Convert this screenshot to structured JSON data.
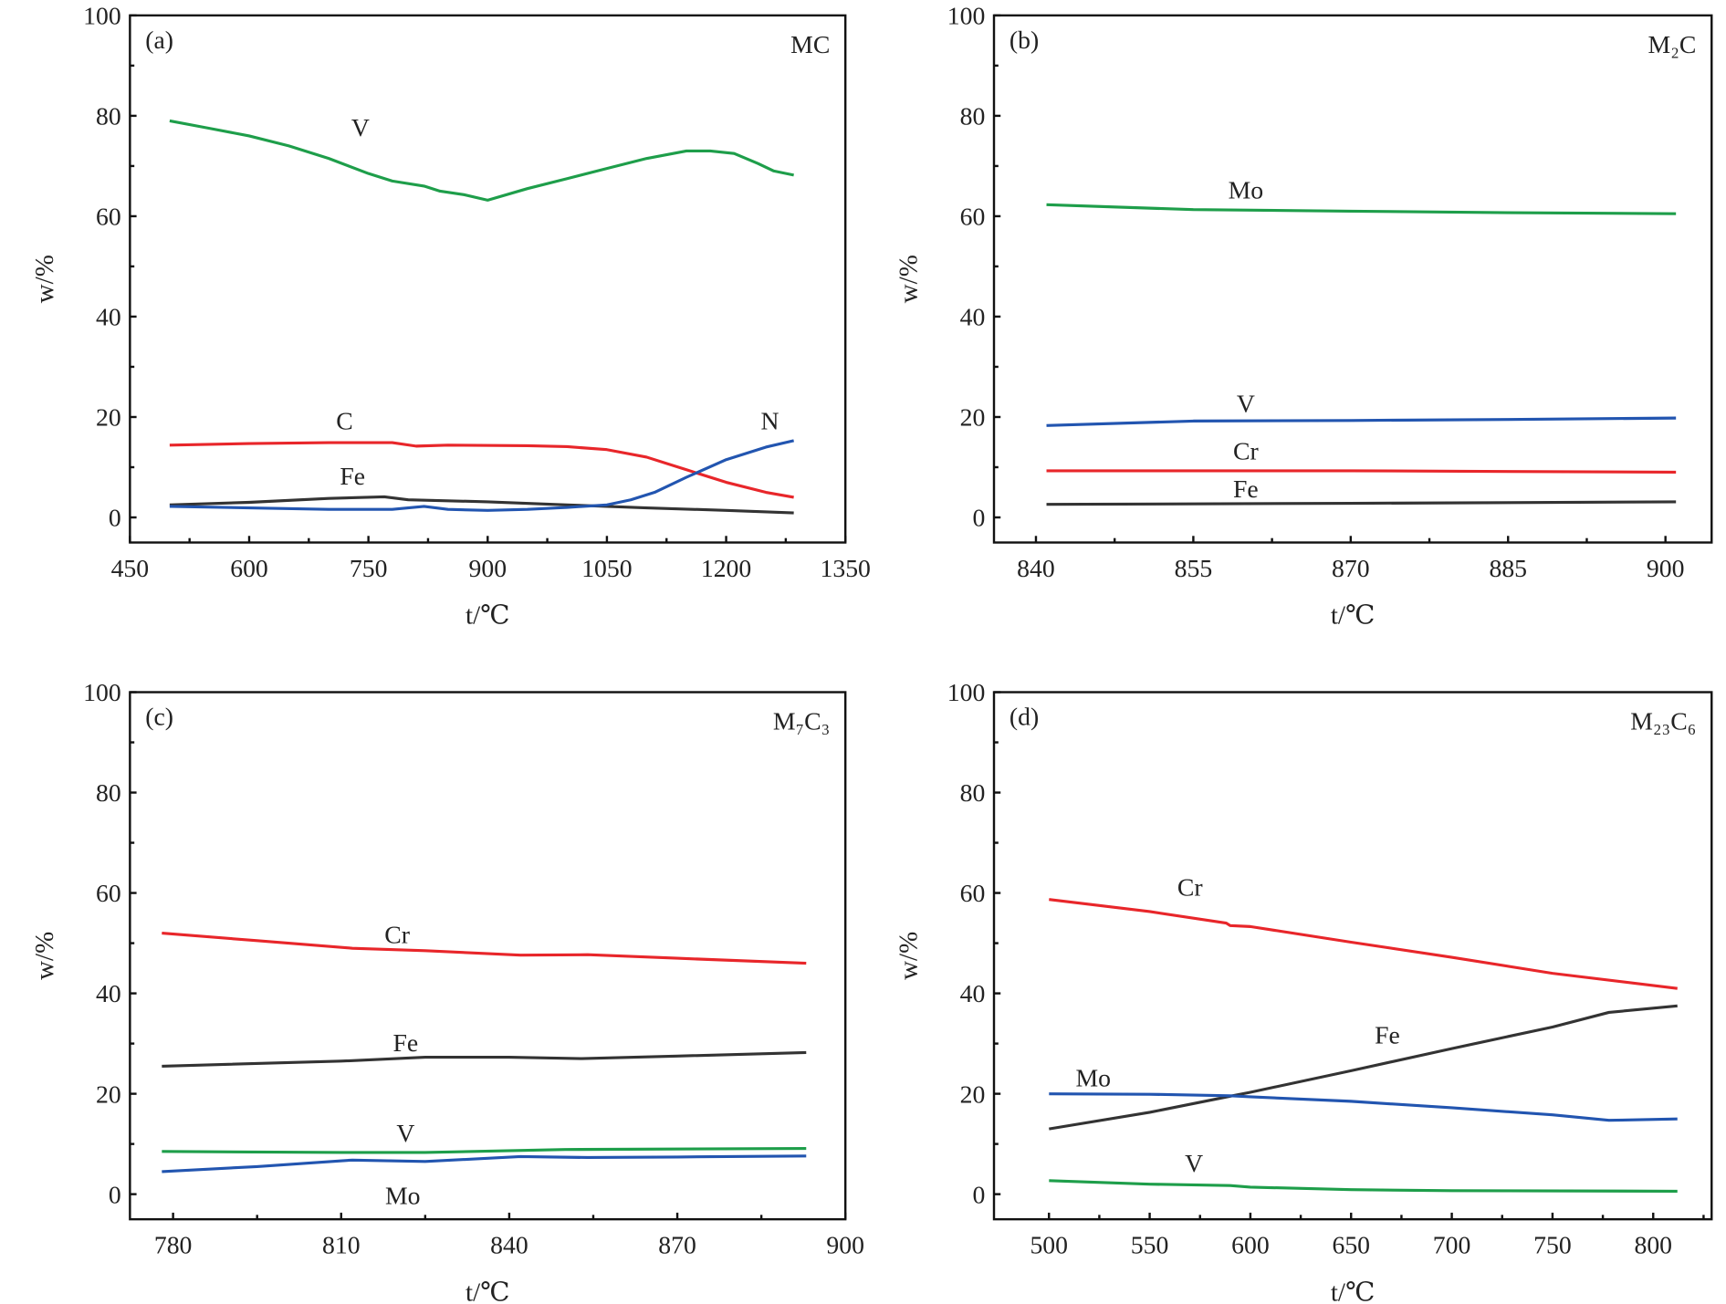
{
  "chart_data": [
    {
      "type": "line",
      "panel_label": "(a)",
      "phase_label": "MC",
      "xlabel": "t/℃",
      "ylabel": "w/%",
      "xlim": [
        450,
        1350
      ],
      "ylim": [
        -5,
        100
      ],
      "xticks": [
        450,
        600,
        750,
        900,
        1050,
        1200,
        1350
      ],
      "yticks": [
        0,
        20,
        40,
        60,
        80,
        100
      ],
      "grid": false,
      "series": [
        {
          "name": "V",
          "color": "#1e9e4a",
          "label_at": [
            740,
            76
          ],
          "x": [
            500,
            550,
            600,
            650,
            700,
            750,
            780,
            820,
            840,
            870,
            900,
            950,
            1000,
            1050,
            1100,
            1150,
            1180,
            1210,
            1240,
            1260,
            1285
          ],
          "y": [
            79,
            77.5,
            76,
            74,
            71.5,
            68.5,
            67,
            66,
            65,
            64.3,
            63.2,
            65.5,
            67.5,
            69.5,
            71.5,
            73,
            73,
            72.5,
            70.5,
            69,
            68.2
          ]
        },
        {
          "name": "C",
          "color": "#e8262a",
          "label_at": [
            720,
            17.5
          ],
          "x": [
            500,
            600,
            700,
            780,
            810,
            850,
            950,
            1000,
            1050,
            1100,
            1150,
            1200,
            1250,
            1285
          ],
          "y": [
            14.4,
            14.7,
            14.9,
            14.9,
            14.2,
            14.4,
            14.3,
            14.1,
            13.5,
            12,
            9.5,
            7,
            5,
            4
          ]
        },
        {
          "name": "Fe",
          "color": "#333333",
          "label_at": [
            730,
            6.5
          ],
          "x": [
            500,
            600,
            700,
            770,
            800,
            900,
            1000,
            1100,
            1200,
            1285
          ],
          "y": [
            2.5,
            3,
            3.8,
            4.1,
            3.5,
            3.1,
            2.5,
            1.9,
            1.4,
            0.9
          ]
        },
        {
          "name": "N",
          "color": "#2255b0",
          "label_at": [
            1255,
            17.5
          ],
          "x": [
            500,
            600,
            700,
            780,
            820,
            850,
            900,
            950,
            1000,
            1050,
            1080,
            1110,
            1150,
            1200,
            1250,
            1285
          ],
          "y": [
            2.2,
            1.9,
            1.6,
            1.6,
            2.2,
            1.6,
            1.4,
            1.6,
            2,
            2.5,
            3.5,
            5,
            8,
            11.5,
            14,
            15.3
          ]
        }
      ]
    },
    {
      "type": "line",
      "panel_label": "(b)",
      "phase_label": "M₂C",
      "xlabel": "t/℃",
      "ylabel": "w/%",
      "xlim": [
        836,
        904.4
      ],
      "ylim": [
        -5,
        100
      ],
      "xticks": [
        840,
        855,
        870,
        885,
        900
      ],
      "yticks": [
        0,
        20,
        40,
        60,
        80,
        100
      ],
      "grid": false,
      "series": [
        {
          "name": "Mo",
          "color": "#1e9e4a",
          "label_at": [
            860,
            63.5
          ],
          "x": [
            841,
            855,
            870,
            885,
            901
          ],
          "y": [
            62.3,
            61.3,
            61,
            60.7,
            60.5
          ]
        },
        {
          "name": "V",
          "color": "#2255b0",
          "label_at": [
            860,
            21
          ],
          "x": [
            841,
            855,
            870,
            885,
            901
          ],
          "y": [
            18.3,
            19.2,
            19.3,
            19.5,
            19.8
          ]
        },
        {
          "name": "Cr",
          "color": "#e8262a",
          "label_at": [
            860,
            11.5
          ],
          "x": [
            841,
            870,
            901
          ],
          "y": [
            9.3,
            9.3,
            9.0
          ]
        },
        {
          "name": "Fe",
          "color": "#333333",
          "label_at": [
            860,
            4
          ]
        },
        {
          "name": "",
          "color": "#333333",
          "x": [
            841,
            870,
            901
          ],
          "y": [
            2.6,
            2.8,
            3.1
          ]
        }
      ]
    },
    {
      "type": "line",
      "panel_label": "(c)",
      "phase_label": "M₇C₃",
      "xlabel": "t/℃",
      "ylabel": "w/%",
      "xlim": [
        772.3,
        900
      ],
      "ylim": [
        -5,
        100
      ],
      "xticks": [
        780,
        810,
        840,
        870,
        900
      ],
      "yticks": [
        0,
        20,
        40,
        60,
        80,
        100
      ],
      "grid": false,
      "series": [
        {
          "name": "Cr",
          "color": "#e8262a",
          "label_at": [
            820,
            50
          ],
          "x": [
            778,
            795,
            812,
            825,
            842,
            854,
            870,
            893
          ],
          "y": [
            52,
            50.5,
            49,
            48.5,
            47.6,
            47.7,
            47,
            46
          ]
        },
        {
          "name": "Fe",
          "color": "#333333",
          "label_at": [
            821.5,
            28.5
          ],
          "x": [
            778,
            810,
            825,
            840,
            853,
            870,
            893
          ],
          "y": [
            25.5,
            26.5,
            27.3,
            27.3,
            27,
            27.5,
            28.2
          ]
        },
        {
          "name": "V",
          "color": "#1e9e4a",
          "label_at": [
            821.5,
            10.5
          ],
          "x": [
            778,
            810,
            825,
            850,
            893
          ],
          "y": [
            8.5,
            8.3,
            8.3,
            8.9,
            9.1
          ]
        },
        {
          "name": "Mo",
          "color": "#2255b0",
          "label_at": [
            821,
            -2
          ],
          "x": [
            778,
            795,
            812,
            825,
            842,
            854,
            870,
            893
          ],
          "y": [
            4.5,
            5.5,
            6.8,
            6.5,
            7.5,
            7.3,
            7.4,
            7.6
          ]
        }
      ]
    },
    {
      "type": "line",
      "panel_label": "(d)",
      "phase_label": "M₂₃C₆",
      "xlabel": "t/℃",
      "ylabel": "w/%",
      "xlim": [
        472.7,
        829
      ],
      "ylim": [
        -5,
        100
      ],
      "xticks": [
        500,
        550,
        600,
        650,
        700,
        750,
        800
      ],
      "yticks": [
        0,
        20,
        40,
        60,
        80,
        100
      ],
      "grid": false,
      "series": [
        {
          "name": "Cr",
          "color": "#e8262a",
          "label_at": [
            570,
            59.5
          ],
          "x": [
            500,
            550,
            588,
            590,
            600,
            650,
            700,
            750,
            812
          ],
          "y": [
            58.7,
            56.3,
            54,
            53.5,
            53.3,
            50.2,
            47.2,
            44,
            41
          ]
        },
        {
          "name": "Fe",
          "color": "#333333",
          "label_at": [
            668,
            30
          ],
          "x": [
            500,
            550,
            590,
            600,
            650,
            700,
            750,
            778,
            812
          ],
          "y": [
            13,
            16.3,
            19.5,
            20.3,
            24.6,
            29,
            33.3,
            36.2,
            37.5
          ]
        },
        {
          "name": "Mo",
          "color": "#2255b0",
          "label_at": [
            522,
            21.5
          ],
          "x": [
            500,
            550,
            590,
            600,
            650,
            700,
            750,
            778,
            812
          ],
          "y": [
            20,
            19.9,
            19.6,
            19.4,
            18.5,
            17.2,
            15.8,
            14.7,
            15
          ]
        },
        {
          "name": "V",
          "color": "#1e9e4a",
          "label_at": [
            572,
            4.5
          ],
          "x": [
            500,
            550,
            590,
            600,
            650,
            700,
            812
          ],
          "y": [
            2.7,
            2,
            1.7,
            1.4,
            0.9,
            0.7,
            0.6
          ]
        }
      ]
    }
  ]
}
